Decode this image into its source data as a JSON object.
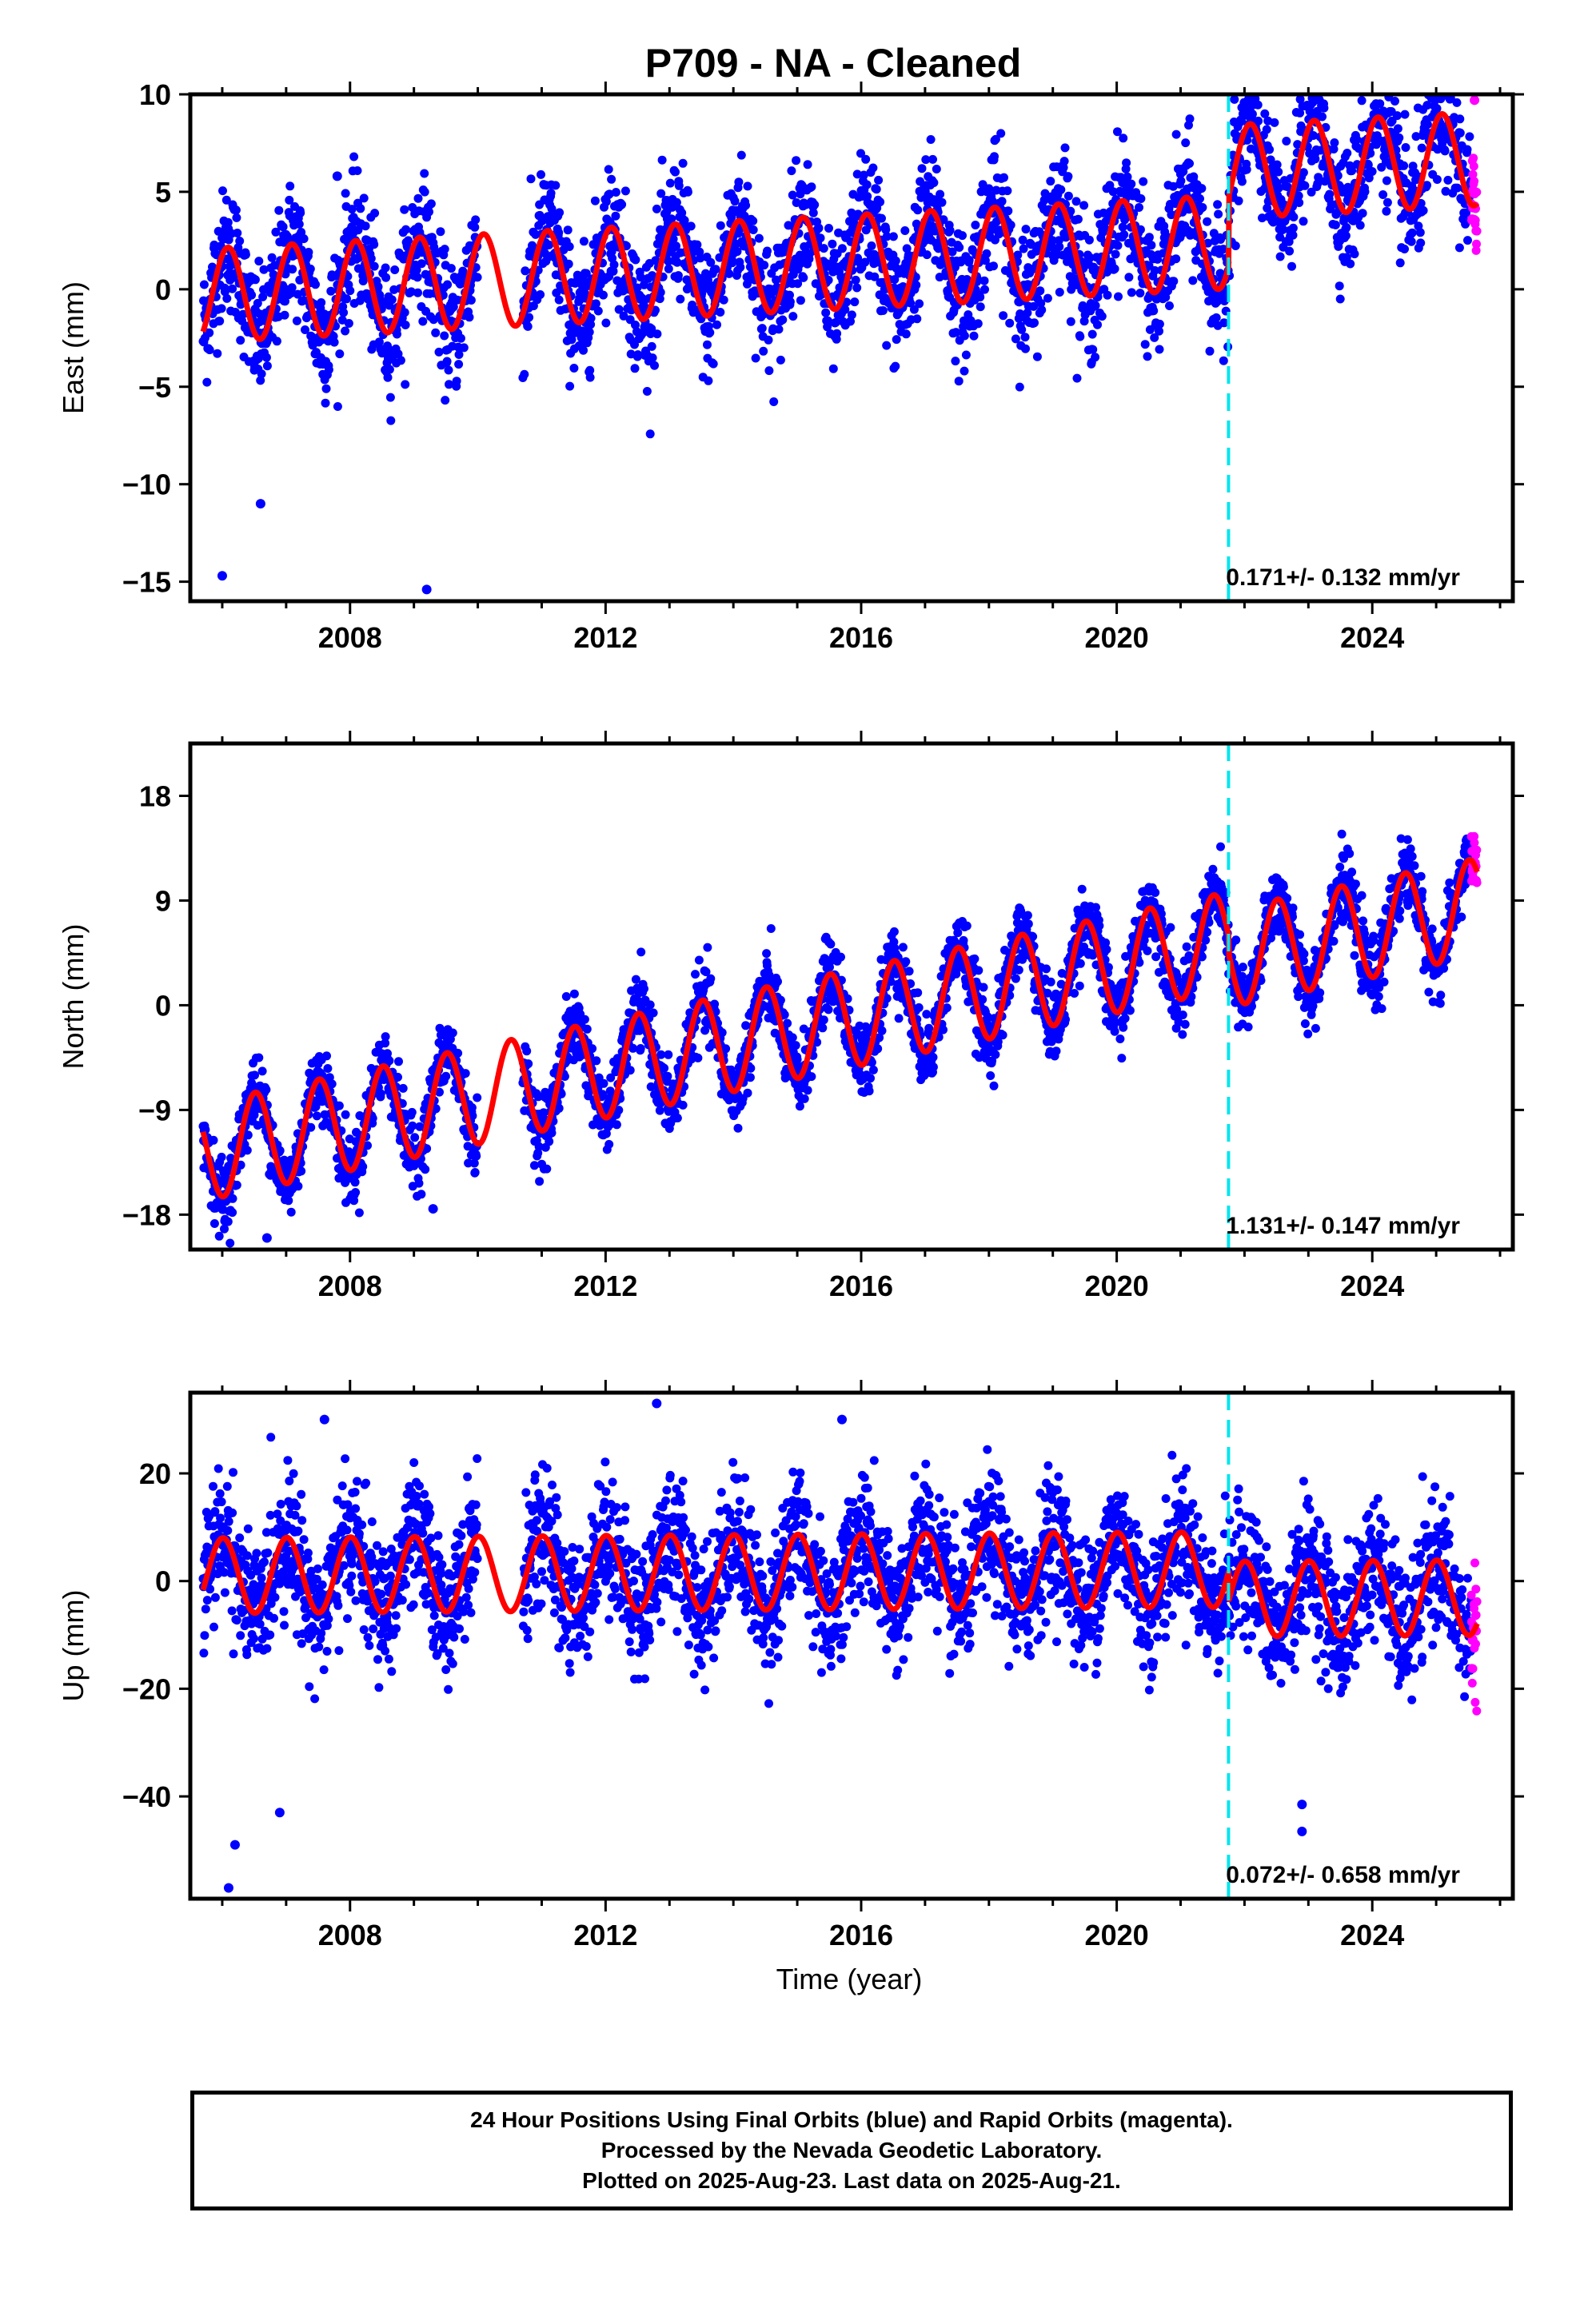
{
  "title": "P709  - NA - Cleaned",
  "xlabel": "Time (year)",
  "x_tick_labels": [
    "2008",
    "2012",
    "2016",
    "2020",
    "2024"
  ],
  "colors": {
    "final_orbits": "#0000ff",
    "rapid_orbits": "#ff00ff",
    "model_fit": "#ff0000",
    "event_line": "#00e5ee"
  },
  "footer": {
    "line1": "24 Hour Positions Using Final Orbits (blue) and Rapid Orbits (magenta).",
    "line2": "Processed by the Nevada Geodetic Laboratory.",
    "line3": "Plotted on 2025-Aug-23. Last data on 2025-Aug-21."
  },
  "chart_data": [
    {
      "type": "scatter",
      "ylabel": "East (mm)",
      "xlim": [
        2005.5,
        2026.2
      ],
      "ylim": [
        -16,
        10
      ],
      "y_ticks": [
        10,
        5,
        0,
        -5,
        -10,
        -15
      ],
      "x_ticks": [
        2008,
        2012,
        2016,
        2020,
        2024
      ],
      "grid": false,
      "event_line_x": 2021.75,
      "rate_annotation": "0.171+/- 0.132 mm/yr",
      "trend": {
        "x0": 2005.8,
        "y0": -0.3,
        "slope": 0.171,
        "step_at": 2021.75,
        "step": 3.6
      },
      "seasonal": {
        "amplitude": 2.4,
        "phase": 1.0
      },
      "scatter_std": 1.6,
      "gap": [
        2010.0,
        2010.7
      ],
      "series": [
        {
          "name": "Final Orbits (blue)",
          "color": "#0000ff",
          "x_range": [
            2005.7,
            2025.55
          ]
        },
        {
          "name": "Rapid Orbits (magenta)",
          "color": "#ff00ff",
          "x_range": [
            2025.55,
            2025.64
          ]
        },
        {
          "name": "Model fit",
          "color": "#ff0000"
        }
      ],
      "outliers": [
        [
          2006.0,
          -14.7
        ],
        [
          2009.2,
          -15.4
        ],
        [
          2006.6,
          -11.0
        ],
        [
          2007.8,
          5.8
        ],
        [
          2025.6,
          9.7
        ]
      ]
    },
    {
      "type": "scatter",
      "ylabel": "North (mm)",
      "xlim": [
        2005.5,
        2026.2
      ],
      "ylim": [
        -21,
        22.5
      ],
      "y_ticks": [
        18,
        9,
        0,
        -9,
        -18
      ],
      "x_ticks": [
        2008,
        2012,
        2016,
        2020,
        2024
      ],
      "grid": false,
      "event_line_x": 2021.75,
      "rate_annotation": "1.131+/- 0.147 mm/yr",
      "trend": {
        "x0": 2005.8,
        "y0": -12.5,
        "slope": 1.131,
        "step_at": 2021.75,
        "step": -1.5
      },
      "seasonal": {
        "amplitude": 4.2,
        "phase": 4.6
      },
      "scatter_std": 1.5,
      "gap": [
        2010.0,
        2010.7
      ],
      "series": [
        {
          "name": "Final Orbits (blue)",
          "color": "#0000ff",
          "x_range": [
            2005.7,
            2025.55
          ]
        },
        {
          "name": "Rapid Orbits (magenta)",
          "color": "#ff00ff",
          "x_range": [
            2025.55,
            2025.64
          ]
        },
        {
          "name": "Model fit",
          "color": "#ff0000"
        }
      ],
      "outliers": [
        [
          2006.7,
          -20.0
        ],
        [
          2009.3,
          -17.5
        ],
        [
          2021.9,
          2.0
        ]
      ]
    },
    {
      "type": "scatter",
      "ylabel": "Up (mm)",
      "xlim": [
        2005.5,
        2026.2
      ],
      "ylim": [
        -59,
        35
      ],
      "y_ticks": [
        20,
        0,
        -20,
        -40
      ],
      "x_ticks": [
        2008,
        2012,
        2016,
        2020,
        2024
      ],
      "grid": false,
      "event_line_x": 2021.75,
      "rate_annotation": "0.072+/- 0.658 mm/yr",
      "trend": {
        "x0": 2005.8,
        "y0": 1.0,
        "slope": 0.072,
        "step_at": 2021.75,
        "step": -5.5
      },
      "seasonal": {
        "amplitude": 7.0,
        "phase": 1.5
      },
      "scatter_std": 6.0,
      "gap": [
        2010.0,
        2010.7
      ],
      "series": [
        {
          "name": "Final Orbits (blue)",
          "color": "#0000ff",
          "x_range": [
            2005.7,
            2025.55
          ]
        },
        {
          "name": "Rapid Orbits (magenta)",
          "color": "#ff00ff",
          "x_range": [
            2025.55,
            2025.64
          ]
        },
        {
          "name": "Model fit",
          "color": "#ff0000"
        }
      ],
      "outliers": [
        [
          2006.1,
          -57.0
        ],
        [
          2006.2,
          -49.0
        ],
        [
          2006.9,
          -43.0
        ],
        [
          2022.9,
          -41.5
        ],
        [
          2022.9,
          -46.5
        ],
        [
          2012.8,
          33.0
        ],
        [
          2015.7,
          30.0
        ],
        [
          2007.6,
          30.0
        ]
      ]
    }
  ]
}
